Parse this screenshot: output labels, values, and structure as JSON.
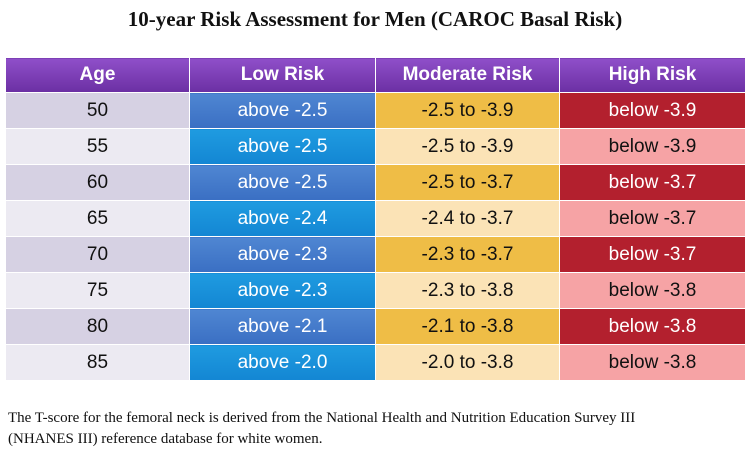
{
  "title": "10-year Risk Assessment for Men (CAROC Basal Risk)",
  "table": {
    "headers": [
      "Age",
      "Low Risk",
      "Moderate Risk",
      "High Risk"
    ],
    "rows": [
      {
        "age": "50",
        "low": "above -2.5",
        "moderate": "-2.5 to -3.9",
        "high": "below -3.9"
      },
      {
        "age": "55",
        "low": "above -2.5",
        "moderate": "-2.5 to -3.9",
        "high": "below -3.9"
      },
      {
        "age": "60",
        "low": "above -2.5",
        "moderate": "-2.5 to -3.7",
        "high": "below -3.7"
      },
      {
        "age": "65",
        "low": "above -2.4",
        "moderate": "-2.4 to -3.7",
        "high": "below -3.7"
      },
      {
        "age": "70",
        "low": "above -2.3",
        "moderate": "-2.3 to -3.7",
        "high": "below -3.7"
      },
      {
        "age": "75",
        "low": "above -2.3",
        "moderate": "-2.3 to -3.8",
        "high": "below -3.8"
      },
      {
        "age": "80",
        "low": "above -2.1",
        "moderate": "-2.1 to -3.8",
        "high": "below -3.8"
      },
      {
        "age": "85",
        "low": "above -2.0",
        "moderate": "-2.0 to -3.8",
        "high": "below -3.8"
      }
    ]
  },
  "footnote": {
    "line1": "The T-score for the femoral neck is derived from the National Health and Nutrition Education Survey III",
    "line2": "(NHANES III) reference database for white women."
  },
  "colors": {
    "header": "#7b3db6",
    "low_dark": "#3a6fc3",
    "low_light": "#1386d3",
    "moderate_dark": "#efbd46",
    "moderate_light": "#fbe3b6",
    "high_dark": "#b3202e",
    "high_light": "#f6a3a5"
  }
}
